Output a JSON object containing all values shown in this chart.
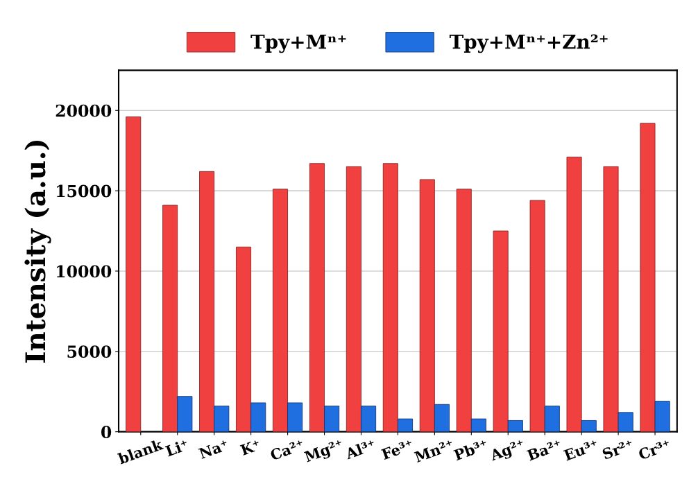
{
  "chart_data": {
    "type": "bar",
    "ylabel": "Intensity (a.u.)",
    "categories": [
      "blank",
      "Li⁺",
      "Na⁺",
      "K⁺",
      "Ca²⁺",
      "Mg²⁺",
      "Al³⁺",
      "Fe³⁺",
      "Mn²⁺",
      "Pb³⁺",
      "Ag²⁺",
      "Ba²⁺",
      "Eu³⁺",
      "Sr²⁺",
      "Cr³⁺"
    ],
    "series": [
      {
        "name": "Tpy+Mⁿ⁺",
        "color": "#f04040",
        "values": [
          19600,
          14100,
          16200,
          11500,
          15100,
          16700,
          16500,
          16700,
          15700,
          15100,
          12500,
          14400,
          17100,
          16500,
          19200
        ]
      },
      {
        "name": "Tpy+Mⁿ⁺+Zn²⁺",
        "color": "#1f6fe0",
        "values": [
          null,
          2200,
          1600,
          1800,
          1800,
          1600,
          1600,
          800,
          1700,
          800,
          700,
          1600,
          700,
          1200,
          1900
        ]
      }
    ],
    "ylim": [
      0,
      22500
    ],
    "yticks": [
      0,
      5000,
      10000,
      15000,
      20000
    ],
    "grid": "y",
    "legend": "top"
  }
}
